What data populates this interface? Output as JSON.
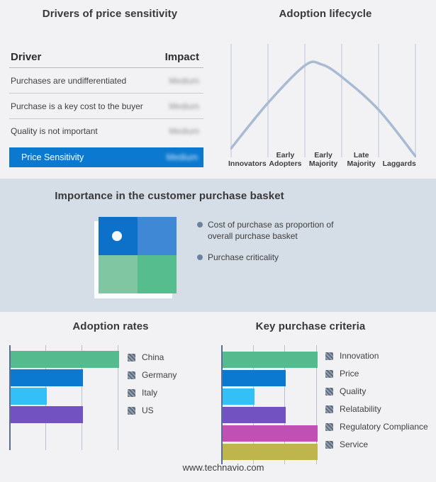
{
  "footer": {
    "url": "www.technavio.com"
  },
  "colors": {
    "background": "#f2f2f4",
    "band_background": "#d5dde6",
    "highlight_blue": "#0b79cf",
    "curve": "#a8bbd3",
    "lifecycle_grid": "#bac6d8",
    "chart_axis": "#5c6d92",
    "chart_grid": "#b6c2d4"
  },
  "top_left": {
    "title": "Drivers of price sensitivity",
    "table": {
      "col_driver": "Driver",
      "col_impact": "Impact",
      "rows": [
        {
          "driver": "Purchases are undifferentiated",
          "impact": "Medium",
          "impact_redacted": true
        },
        {
          "driver": "Purchase is a key cost to the buyer",
          "impact": "Medium",
          "impact_redacted": true
        },
        {
          "driver": "Quality is not important",
          "impact": "Medium",
          "impact_redacted": true
        }
      ],
      "highlight": {
        "driver": "Price Sensitivity",
        "impact": "Medium",
        "impact_redacted": true,
        "color": "#0b79cf"
      }
    }
  },
  "top_right": {
    "title": "Adoption lifecycle",
    "stages": [
      "Innovators",
      "Early Adopters",
      "Early Majority",
      "Late Majority",
      "Laggards"
    ]
  },
  "band": {
    "title": "Importance in the customer purchase basket",
    "bullets": [
      "Cost of purchase as proportion of overall purchase basket",
      "Purchase criticality"
    ],
    "quadrant": {
      "top_left": "#0d70c9",
      "top_right": "#3e88d6",
      "bottom_left": "#80c6a3",
      "bottom_right": "#55bd8e",
      "marker": "white dot in top-left quadrant"
    }
  },
  "chart_data": [
    {
      "type": "bar",
      "orientation": "horizontal",
      "title": "Adoption rates",
      "categories": [
        "China",
        "Germany",
        "Italy",
        "US"
      ],
      "values": [
        3,
        2,
        1,
        2
      ],
      "axis_max": 3,
      "axis_ticks_labeled": false,
      "grid": true,
      "colors": [
        "#55bb8e",
        "#0b79cf",
        "#33c0f7",
        "#7252c0"
      ],
      "legend_position": "right",
      "legend_swatch_style": "hatched-redacted"
    },
    {
      "type": "bar",
      "orientation": "horizontal",
      "title": "Key purchase criteria",
      "categories": [
        "Innovation",
        "Price",
        "Quality",
        "Relatability",
        "Regulatory Compliance",
        "Service"
      ],
      "values": [
        3,
        2,
        1,
        2,
        3,
        3
      ],
      "axis_max": 3,
      "axis_ticks_labeled": false,
      "grid": true,
      "colors": [
        "#55bb8e",
        "#0b79cf",
        "#33c0f7",
        "#7252c0",
        "#c050b4",
        "#beb54d"
      ],
      "legend_position": "right",
      "legend_swatch_style": "hatched-redacted"
    },
    {
      "type": "line",
      "title": "Adoption lifecycle",
      "shape": "bell-curve",
      "x_stages": [
        "Innovators",
        "Early Adopters",
        "Early Majority",
        "Late Majority",
        "Laggards"
      ],
      "curve_points_norm": [
        [
          0.0,
          0.08
        ],
        [
          0.2,
          0.48
        ],
        [
          0.4,
          0.81
        ],
        [
          0.49,
          0.82
        ],
        [
          0.6,
          0.71
        ],
        [
          0.8,
          0.42
        ],
        [
          1.0,
          0.01
        ]
      ],
      "line_color": "#a8bbd3",
      "grid_color": "#bac6d8",
      "grid": true
    }
  ]
}
